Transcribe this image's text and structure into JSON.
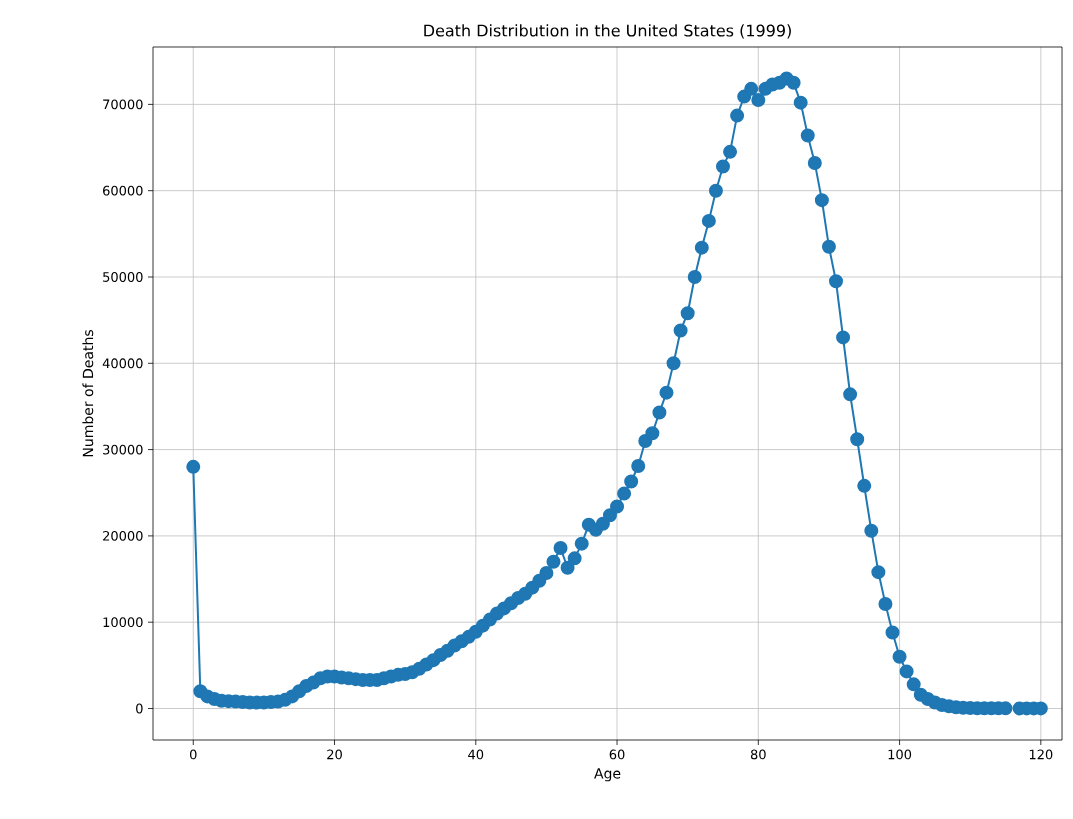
{
  "chart_data": {
    "type": "line",
    "title": "Death Distribution in the United States (1999)",
    "xlabel": "Age",
    "ylabel": "Number of Deaths",
    "x": [
      0,
      1,
      2,
      3,
      4,
      5,
      6,
      7,
      8,
      9,
      10,
      11,
      12,
      13,
      14,
      15,
      16,
      17,
      18,
      19,
      20,
      21,
      22,
      23,
      24,
      25,
      26,
      27,
      28,
      29,
      30,
      31,
      32,
      33,
      34,
      35,
      36,
      37,
      38,
      39,
      40,
      41,
      42,
      43,
      44,
      45,
      46,
      47,
      48,
      49,
      50,
      51,
      52,
      53,
      54,
      55,
      56,
      57,
      58,
      59,
      60,
      61,
      62,
      63,
      64,
      65,
      66,
      67,
      68,
      69,
      70,
      71,
      72,
      73,
      74,
      75,
      76,
      77,
      78,
      79,
      80,
      81,
      82,
      83,
      84,
      85,
      86,
      87,
      88,
      89,
      90,
      91,
      92,
      93,
      94,
      95,
      96,
      97,
      98,
      99,
      100,
      101,
      102,
      103,
      104,
      105,
      106,
      107,
      108,
      109,
      110,
      111,
      112,
      113,
      114,
      115,
      116,
      117,
      118,
      119,
      120
    ],
    "series": [
      {
        "color": "#1f77b4",
        "values": [
          28000,
          2000,
          1400,
          1100,
          900,
          850,
          800,
          750,
          700,
          700,
          700,
          750,
          800,
          1000,
          1400,
          2000,
          2600,
          3000,
          3500,
          3700,
          3700,
          3600,
          3500,
          3400,
          3300,
          3300,
          3300,
          3500,
          3700,
          3900,
          4000,
          4200,
          4600,
          5100,
          5600,
          6200,
          6700,
          7300,
          7800,
          8300,
          8900,
          9600,
          10300,
          11000,
          11600,
          12200,
          12800,
          13300,
          14000,
          14800,
          15700,
          17000,
          18600,
          16300,
          17400,
          19100,
          21300,
          20700,
          21400,
          22400,
          23400,
          24900,
          26300,
          28100,
          31000,
          31900,
          34300,
          36600,
          40000,
          43800,
          45800,
          50000,
          53400,
          56500,
          60000,
          62800,
          64500,
          68700,
          70900,
          71800,
          70500,
          71800,
          72300,
          72500,
          73000,
          72500,
          70200,
          66400,
          63200,
          58900,
          53500,
          49500,
          43000,
          36400,
          31200,
          25800,
          20600,
          15800,
          12100,
          8800,
          6000,
          4300,
          2800,
          1600,
          1100,
          700,
          400,
          250,
          150,
          80,
          50,
          20,
          20,
          20,
          20,
          20,
          null,
          10,
          10,
          10,
          10
        ]
      }
    ],
    "xlim": [
      -5.7,
      123
    ],
    "ylim": [
      -3650,
      76650
    ],
    "xticks": [
      0,
      20,
      40,
      60,
      80,
      100,
      120
    ],
    "yticks": [
      0,
      10000,
      20000,
      30000,
      40000,
      50000,
      60000,
      70000
    ],
    "grid": true,
    "marker": "circle",
    "line_style": "solid"
  }
}
